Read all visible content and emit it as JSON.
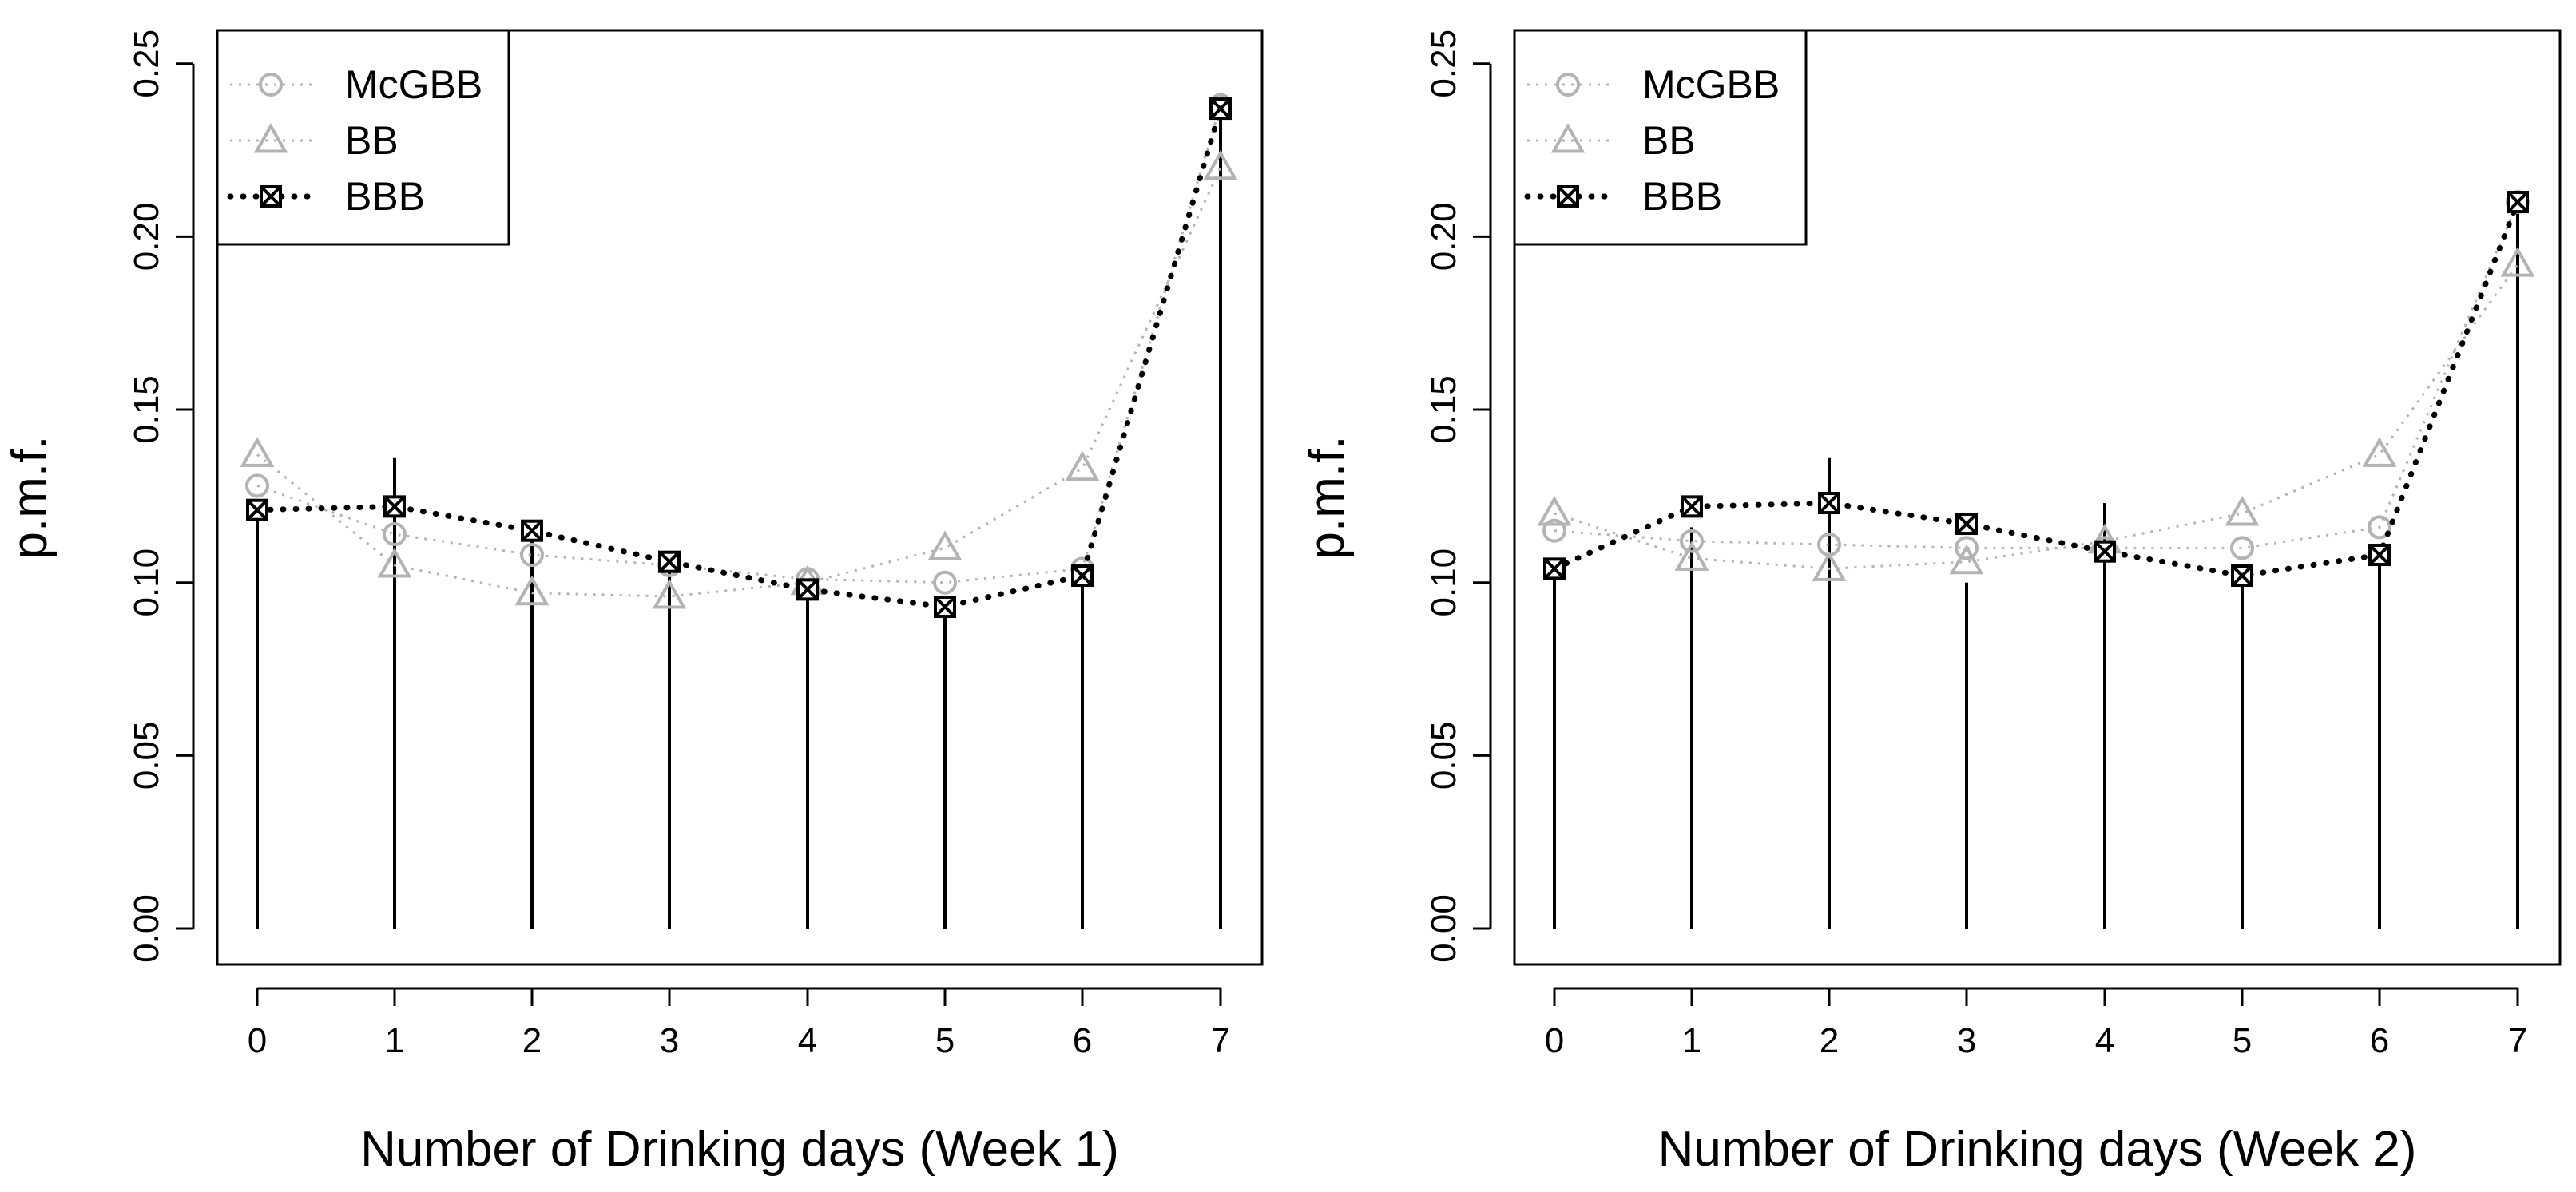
{
  "chart_data": [
    {
      "type": "line",
      "title": "",
      "xlabel": "Number of Drinking days (Week 1)",
      "ylabel": "p.m.f.",
      "x": [
        0,
        1,
        2,
        3,
        4,
        5,
        6,
        7
      ],
      "ylim": [
        0,
        0.25
      ],
      "yticks": [
        "0.00",
        "0.05",
        "0.10",
        "0.15",
        "0.20",
        "0.25"
      ],
      "legend_position": "top-left",
      "observed": [
        0.121,
        0.136,
        0.116,
        0.107,
        0.098,
        0.094,
        0.103,
        0.238
      ],
      "series": [
        {
          "name": "McGBB",
          "marker": "circle",
          "color": "#b3b3b3",
          "values": [
            0.128,
            0.114,
            0.108,
            0.105,
            0.101,
            0.1,
            0.104,
            0.238
          ]
        },
        {
          "name": "BB",
          "marker": "triangle",
          "color": "#b3b3b3",
          "values": [
            0.137,
            0.105,
            0.097,
            0.096,
            0.1,
            0.11,
            0.133,
            0.22
          ]
        },
        {
          "name": "BBB",
          "marker": "boxed-x",
          "color": "#000000",
          "values": [
            0.121,
            0.122,
            0.115,
            0.106,
            0.098,
            0.093,
            0.102,
            0.237
          ]
        }
      ]
    },
    {
      "type": "line",
      "title": "",
      "xlabel": "Number of Drinking days (Week 2)",
      "ylabel": "p.m.f.",
      "x": [
        0,
        1,
        2,
        3,
        4,
        5,
        6,
        7
      ],
      "ylim": [
        0,
        0.25
      ],
      "yticks": [
        "0.00",
        "0.05",
        "0.10",
        "0.15",
        "0.20",
        "0.25"
      ],
      "legend_position": "top-left",
      "observed": [
        0.103,
        0.116,
        0.136,
        0.1,
        0.123,
        0.103,
        0.109,
        0.21
      ],
      "series": [
        {
          "name": "McGBB",
          "marker": "circle",
          "color": "#b3b3b3",
          "values": [
            0.115,
            0.112,
            0.111,
            0.11,
            0.11,
            0.11,
            0.116,
            0.21
          ]
        },
        {
          "name": "BB",
          "marker": "triangle",
          "color": "#b3b3b3",
          "values": [
            0.12,
            0.107,
            0.104,
            0.106,
            0.112,
            0.12,
            0.137,
            0.192
          ]
        },
        {
          "name": "BBB",
          "marker": "boxed-x",
          "color": "#000000",
          "values": [
            0.104,
            0.122,
            0.123,
            0.117,
            0.109,
            0.102,
            0.108,
            0.21
          ]
        }
      ]
    }
  ]
}
